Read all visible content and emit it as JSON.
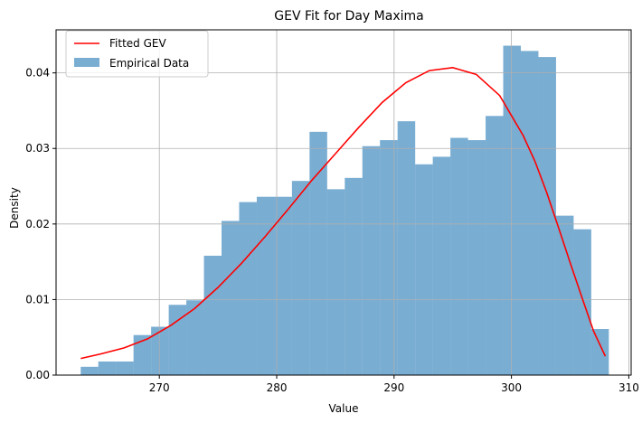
{
  "chart_data": {
    "type": "bar",
    "title": "GEV Fit for Day Maxima",
    "xlabel": "Value",
    "ylabel": "Density",
    "xlim": [
      261.2,
      310.2
    ],
    "ylim": [
      0,
      0.0457
    ],
    "xticks": [
      270,
      280,
      290,
      300,
      310
    ],
    "yticks": [
      0.0,
      0.01,
      0.02,
      0.03,
      0.04
    ],
    "xtick_labels": [
      "270",
      "280",
      "290",
      "300",
      "310"
    ],
    "ytick_labels": [
      "0.00",
      "0.01",
      "0.02",
      "0.03",
      "0.04"
    ],
    "grid": true,
    "legend_position": "top-left",
    "bin_start": 263.3,
    "bin_width": 1.5,
    "histogram": {
      "name": "Empirical Data",
      "color": "#1f77b4",
      "values": [
        0.0011,
        0.0018,
        0.0018,
        0.0053,
        0.0064,
        0.0093,
        0.0099,
        0.0158,
        0.0204,
        0.0229,
        0.0236,
        0.0236,
        0.0257,
        0.0322,
        0.0246,
        0.0261,
        0.0303,
        0.0311,
        0.0336,
        0.0279,
        0.0289,
        0.0314,
        0.0311,
        0.0343,
        0.0436,
        0.0429,
        0.0421,
        0.0211,
        0.0193,
        0.0061
      ]
    },
    "fit_curve": {
      "name": "Fitted GEV",
      "color": "#ff0000",
      "x": [
        263.3,
        265,
        267,
        269,
        271,
        273,
        275,
        277,
        279,
        281,
        283,
        285,
        287,
        289,
        291,
        293,
        295,
        297,
        299,
        301,
        302,
        303,
        304,
        305,
        306,
        307,
        308
      ],
      "y": [
        0.0022,
        0.0028,
        0.0036,
        0.0048,
        0.0066,
        0.0088,
        0.0116,
        0.0148,
        0.0183,
        0.022,
        0.0258,
        0.0293,
        0.0328,
        0.0361,
        0.0387,
        0.0403,
        0.0407,
        0.0398,
        0.037,
        0.0317,
        0.0283,
        0.0242,
        0.0196,
        0.0149,
        0.0103,
        0.0058,
        0.0025
      ]
    }
  }
}
